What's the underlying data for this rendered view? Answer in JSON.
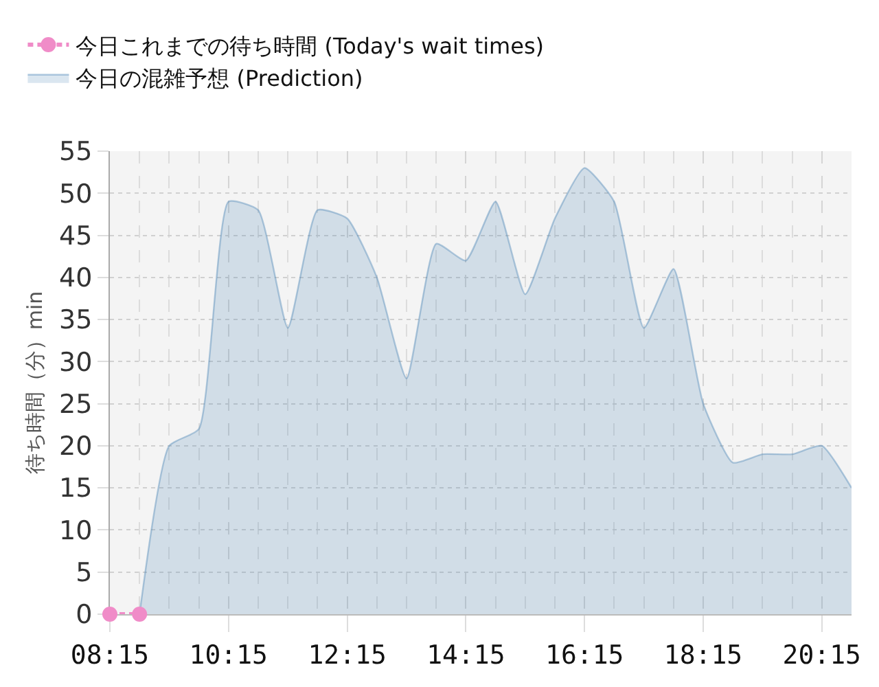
{
  "chart_data": {
    "type": "area",
    "ylabel": "待ち時間（分）min",
    "xlim": [
      8.25,
      20.75
    ],
    "xticks": [
      {
        "value": 8.25,
        "label": "08:15"
      },
      {
        "value": 8.75,
        "label": null
      },
      {
        "value": 9.25,
        "label": null
      },
      {
        "value": 9.75,
        "label": null
      },
      {
        "value": 10.25,
        "label": "10:15"
      },
      {
        "value": 10.75,
        "label": null
      },
      {
        "value": 11.25,
        "label": null
      },
      {
        "value": 11.75,
        "label": null
      },
      {
        "value": 12.25,
        "label": "12:15"
      },
      {
        "value": 12.75,
        "label": null
      },
      {
        "value": 13.25,
        "label": null
      },
      {
        "value": 13.75,
        "label": null
      },
      {
        "value": 14.25,
        "label": "14:15"
      },
      {
        "value": 14.75,
        "label": null
      },
      {
        "value": 15.25,
        "label": null
      },
      {
        "value": 15.75,
        "label": null
      },
      {
        "value": 16.25,
        "label": "16:15"
      },
      {
        "value": 16.75,
        "label": null
      },
      {
        "value": 17.25,
        "label": null
      },
      {
        "value": 17.75,
        "label": null
      },
      {
        "value": 18.25,
        "label": "18:15"
      },
      {
        "value": 18.75,
        "label": null
      },
      {
        "value": 19.25,
        "label": null
      },
      {
        "value": 19.75,
        "label": null
      },
      {
        "value": 20.25,
        "label": "20:15"
      },
      {
        "value": 20.75,
        "label": null
      }
    ],
    "ylim": [
      0,
      55
    ],
    "yticks": [
      0,
      5,
      10,
      15,
      20,
      25,
      30,
      35,
      40,
      45,
      50,
      55
    ],
    "grid": true,
    "legend": "top left",
    "series": [
      {
        "name": "今日これまでの待ち時間 (Today's wait times)",
        "type": "line",
        "color": "#f08cc8",
        "marker": "circle",
        "line_style": "dashed",
        "x": [
          8.25,
          8.75
        ],
        "values": [
          0,
          0
        ]
      },
      {
        "name": "今日の混雑予想 (Prediction)",
        "color": "#4682b4",
        "x": [
          8.75,
          9.25,
          9.75,
          10.25,
          10.75,
          11.25,
          11.75,
          12.25,
          12.75,
          13.25,
          13.75,
          14.25,
          14.75,
          15.25,
          15.75,
          16.25,
          16.75,
          17.25,
          17.75,
          18.25,
          18.75,
          19.25,
          19.75,
          20.25,
          20.75
        ],
        "values": [
          0,
          20,
          22,
          49,
          48,
          34,
          48,
          47,
          40,
          28,
          44,
          42,
          49,
          38,
          47,
          53,
          49,
          34,
          41,
          25,
          18,
          19,
          19,
          20,
          15
        ]
      }
    ]
  }
}
